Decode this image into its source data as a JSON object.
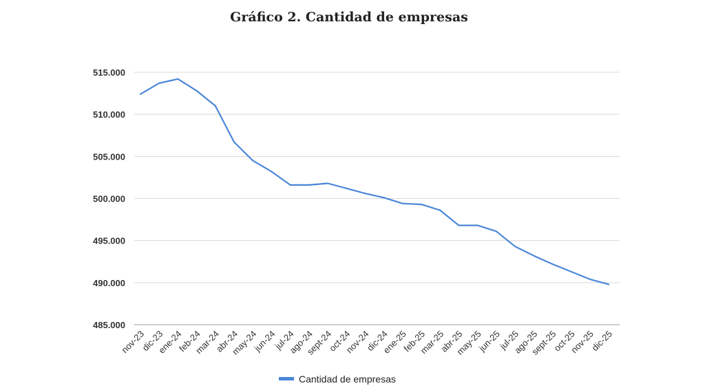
{
  "chart_data": {
    "type": "line",
    "title": "Gráfico 2. Cantidad de empresas",
    "xlabel": "",
    "ylabel": "",
    "ylim": [
      485000,
      515000
    ],
    "yticks": [
      485000,
      490000,
      495000,
      500000,
      505000,
      510000,
      515000
    ],
    "ytick_labels": [
      "485.000",
      "490.000",
      "495.000",
      "500.000",
      "505.000",
      "510.000",
      "515.000"
    ],
    "grid": true,
    "legend": "bottom",
    "categories": [
      "nov-23",
      "dic-23",
      "ene-24",
      "feb-24",
      "mar-24",
      "abr-24",
      "may-24",
      "jun-24",
      "jul-24",
      "ago-24",
      "sept-24",
      "oct-24",
      "nov-24",
      "dic-24",
      "ene-25",
      "feb-25",
      "mar-25",
      "abr-25",
      "may-25",
      "jun-25",
      "jul-25",
      "ago-25",
      "sept-25",
      "oct-25",
      "nov-25",
      "dic-25"
    ],
    "series": [
      {
        "name": "Cantidad de empresas",
        "color": "#4a86d8",
        "values": [
          512400,
          513700,
          514200,
          512800,
          511000,
          506700,
          504500,
          503200,
          501600,
          501600,
          501800,
          501200,
          500600,
          500100,
          499400,
          499300,
          498600,
          496800,
          496800,
          496100,
          494300,
          493200,
          492200,
          491300,
          490400,
          489800
        ]
      }
    ]
  }
}
